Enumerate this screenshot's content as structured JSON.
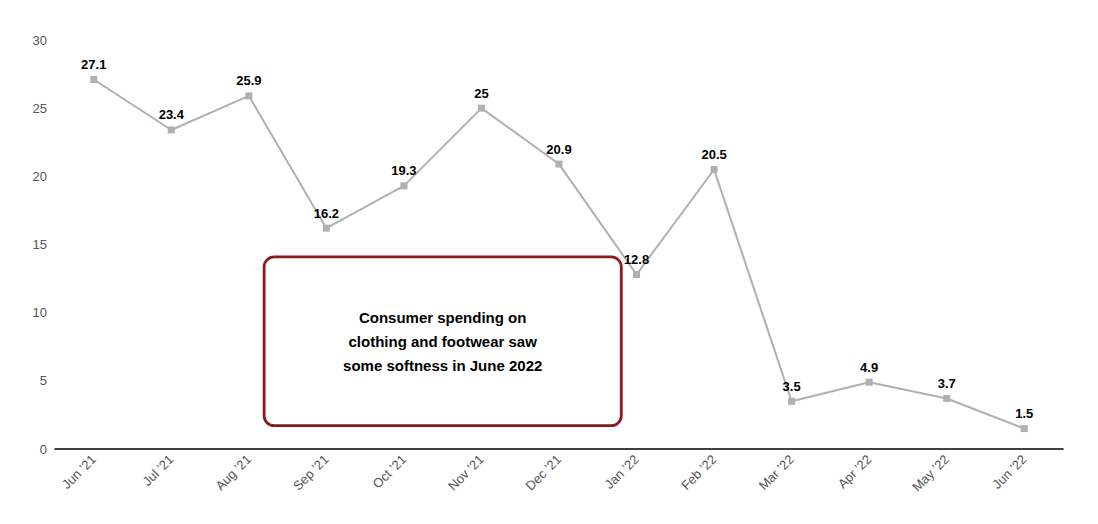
{
  "chart_data": {
    "type": "line",
    "categories": [
      "Jun ’21",
      "Jul ’21",
      "Aug ’21",
      "Sep ’21",
      "Oct ’21",
      "Nov ’21",
      "Dec ’21",
      "Jan ’22",
      "Feb ’22",
      "Mar ’22",
      "Apr ’22",
      "May ’22",
      "Jun ’22"
    ],
    "values": [
      27.1,
      23.4,
      25.9,
      16.2,
      19.3,
      25.0,
      20.9,
      12.8,
      20.5,
      3.5,
      4.9,
      3.7,
      1.5
    ],
    "color": "#b0b0b0",
    "marker": "square",
    "ylim": [
      0,
      30
    ],
    "yticks": [
      0,
      5,
      10,
      15,
      20,
      25,
      30
    ],
    "grid": false,
    "data_labels": true,
    "annotation": "Consumer spending on\nclothing and footwear saw\nsome softness in June 2022"
  }
}
